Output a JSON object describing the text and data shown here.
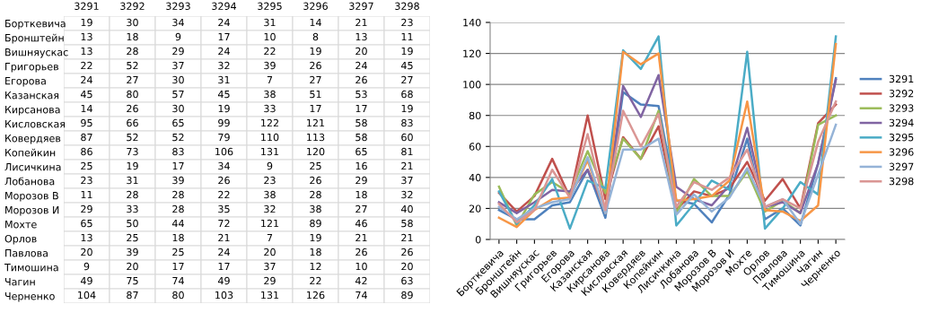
{
  "chart_data": [
    {
      "type": "heatmap",
      "categories": [
        "3291",
        "3292",
        "3293",
        "3294",
        "3295",
        "3296",
        "3297",
        "3298"
      ],
      "y_categories": [
        "Борткевича",
        "Бронштейн",
        "Вишняускас",
        "Григорьев",
        "Егорова",
        "Казанская",
        "Кирсанова",
        "Кисловская",
        "Ковердяев",
        "Копейкин",
        "Лисичкина",
        "Лобанова",
        "Морозов В",
        "Морозов И",
        "Мохте",
        "Орлов",
        "Павлова",
        "Тимошина",
        "Чагин",
        "Черненко"
      ],
      "cells": [
        [
          19,
          30,
          34,
          24,
          31,
          14,
          21,
          23
        ],
        [
          13,
          18,
          9,
          17,
          10,
          8,
          13,
          11
        ],
        [
          13,
          28,
          29,
          24,
          22,
          19,
          20,
          19
        ],
        [
          22,
          52,
          37,
          32,
          39,
          26,
          24,
          45
        ],
        [
          24,
          27,
          30,
          31,
          7,
          27,
          26,
          27
        ],
        [
          45,
          80,
          57,
          45,
          38,
          51,
          53,
          68
        ],
        [
          14,
          26,
          30,
          19,
          33,
          17,
          17,
          19
        ],
        [
          95,
          66,
          65,
          99,
          122,
          121,
          58,
          83
        ],
        [
          87,
          52,
          52,
          79,
          110,
          113,
          58,
          60
        ],
        [
          86,
          73,
          83,
          106,
          131,
          120,
          65,
          81
        ],
        [
          25,
          19,
          17,
          34,
          9,
          25,
          16,
          21
        ],
        [
          23,
          31,
          39,
          26,
          23,
          26,
          29,
          37
        ],
        [
          11,
          28,
          28,
          22,
          38,
          28,
          18,
          32
        ],
        [
          29,
          33,
          28,
          35,
          32,
          38,
          27,
          40
        ],
        [
          65,
          50,
          44,
          72,
          121,
          89,
          46,
          58
        ],
        [
          13,
          25,
          18,
          21,
          7,
          19,
          21,
          21
        ],
        [
          20,
          39,
          25,
          24,
          20,
          18,
          26,
          26
        ],
        [
          9,
          20,
          17,
          17,
          37,
          12,
          10,
          20
        ],
        [
          49,
          75,
          74,
          49,
          29,
          22,
          42,
          63
        ],
        [
          104,
          87,
          80,
          103,
          131,
          126,
          74,
          89
        ]
      ],
      "data_labels": true
    },
    {
      "type": "line",
      "categories": [
        "Борткевича",
        "Бронштейн",
        "Вишняускас",
        "Григорьев",
        "Егорова",
        "Казанская",
        "Кирсанова",
        "Кисловская",
        "Ковердяев",
        "Копейкин",
        "Лисичкина",
        "Лобанова",
        "Морозов В",
        "Морозов И",
        "Мохте",
        "Орлов",
        "Павлова",
        "Тимошина",
        "Чагин",
        "Черненко"
      ],
      "series": [
        {
          "name": "3291",
          "color": "#4f81bd",
          "values": [
            19,
            13,
            13,
            22,
            24,
            45,
            14,
            95,
            87,
            86,
            25,
            23,
            11,
            29,
            65,
            13,
            20,
            9,
            49,
            104
          ]
        },
        {
          "name": "3292",
          "color": "#c0504d",
          "values": [
            30,
            18,
            28,
            52,
            27,
            80,
            26,
            66,
            52,
            73,
            19,
            31,
            28,
            33,
            50,
            25,
            39,
            20,
            75,
            87
          ]
        },
        {
          "name": "3293",
          "color": "#9bbb59",
          "values": [
            34,
            9,
            29,
            37,
            30,
            57,
            30,
            65,
            52,
            83,
            17,
            39,
            28,
            28,
            44,
            18,
            25,
            17,
            74,
            80
          ]
        },
        {
          "name": "3294",
          "color": "#8064a2",
          "values": [
            24,
            17,
            24,
            32,
            31,
            45,
            19,
            99,
            79,
            106,
            34,
            26,
            22,
            35,
            72,
            21,
            24,
            17,
            49,
            103
          ]
        },
        {
          "name": "3295",
          "color": "#4bacc6",
          "values": [
            31,
            10,
            22,
            39,
            7,
            38,
            33,
            122,
            110,
            131,
            9,
            23,
            38,
            32,
            121,
            7,
            20,
            37,
            29,
            131
          ]
        },
        {
          "name": "3296",
          "color": "#f79646",
          "values": [
            14,
            8,
            19,
            26,
            27,
            51,
            17,
            121,
            113,
            120,
            25,
            26,
            28,
            38,
            89,
            19,
            18,
            12,
            22,
            126
          ]
        },
        {
          "name": "3297",
          "color": "#95b3d7",
          "values": [
            21,
            13,
            20,
            24,
            26,
            53,
            17,
            58,
            58,
            65,
            16,
            29,
            18,
            27,
            46,
            21,
            26,
            10,
            42,
            74
          ]
        },
        {
          "name": "3298",
          "color": "#da9694",
          "values": [
            23,
            11,
            19,
            45,
            27,
            68,
            19,
            83,
            60,
            81,
            21,
            37,
            32,
            40,
            58,
            21,
            26,
            20,
            63,
            89
          ]
        }
      ],
      "ylim": [
        0,
        140
      ],
      "yticks": [
        0,
        20,
        40,
        60,
        80,
        100,
        120,
        140
      ],
      "grid": "y",
      "legend": "right",
      "marker": "none",
      "line_style": "solid"
    }
  ]
}
